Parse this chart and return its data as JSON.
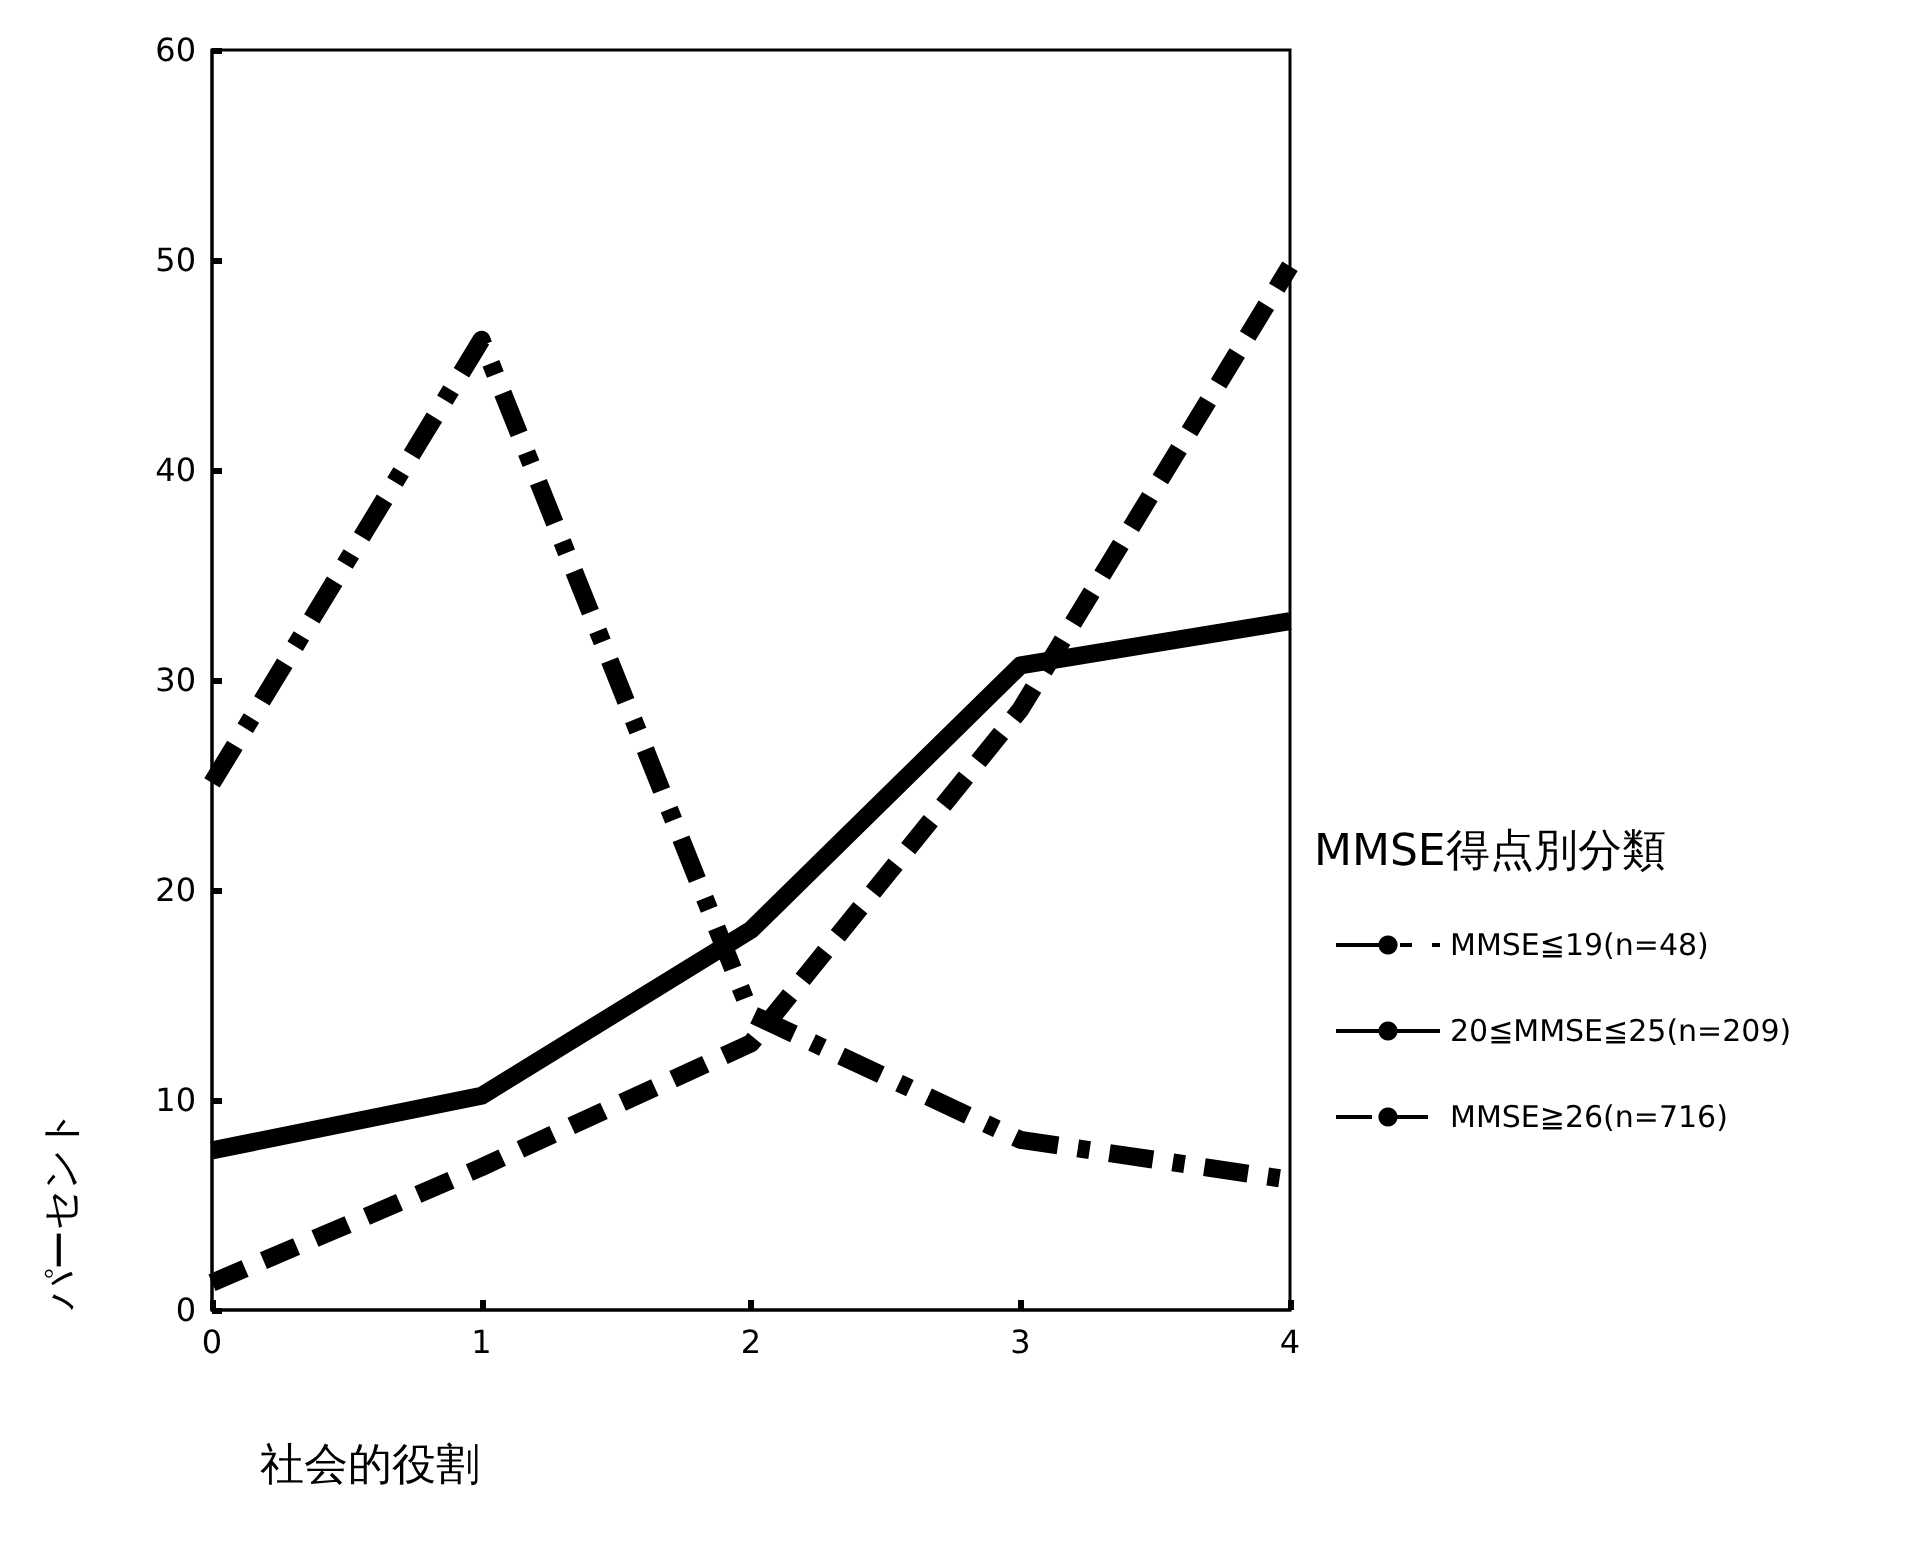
{
  "chart_data": {
    "type": "line",
    "xlabel": "社会的役割",
    "ylabel": "パーセント",
    "legend_title": "MMSE得点別分類",
    "x": [
      0,
      1,
      2,
      3,
      4
    ],
    "xlim": [
      0,
      4
    ],
    "xticks": [
      0,
      1,
      2,
      3,
      4
    ],
    "ylim": [
      0,
      60
    ],
    "yticks": [
      0,
      10,
      20,
      30,
      40,
      50,
      60
    ],
    "grid": false,
    "legend": "right",
    "marker": "none",
    "series": [
      {
        "name": "MMSE≦19(n=48)",
        "color": "#000000",
        "line_style": "dashdot",
        "values": [
          25.1,
          46.2,
          14.1,
          8.1,
          6.2
        ]
      },
      {
        "name": "20≦MMSE≦25(n=209)",
        "color": "#000000",
        "line_style": "solid",
        "values": [
          7.6,
          10.2,
          18.1,
          30.7,
          32.8
        ]
      },
      {
        "name": "MMSE≧26(n=716)",
        "color": "#000000",
        "line_style": "dashed",
        "values": [
          1.3,
          6.8,
          12.7,
          28.6,
          49.7
        ]
      }
    ]
  }
}
